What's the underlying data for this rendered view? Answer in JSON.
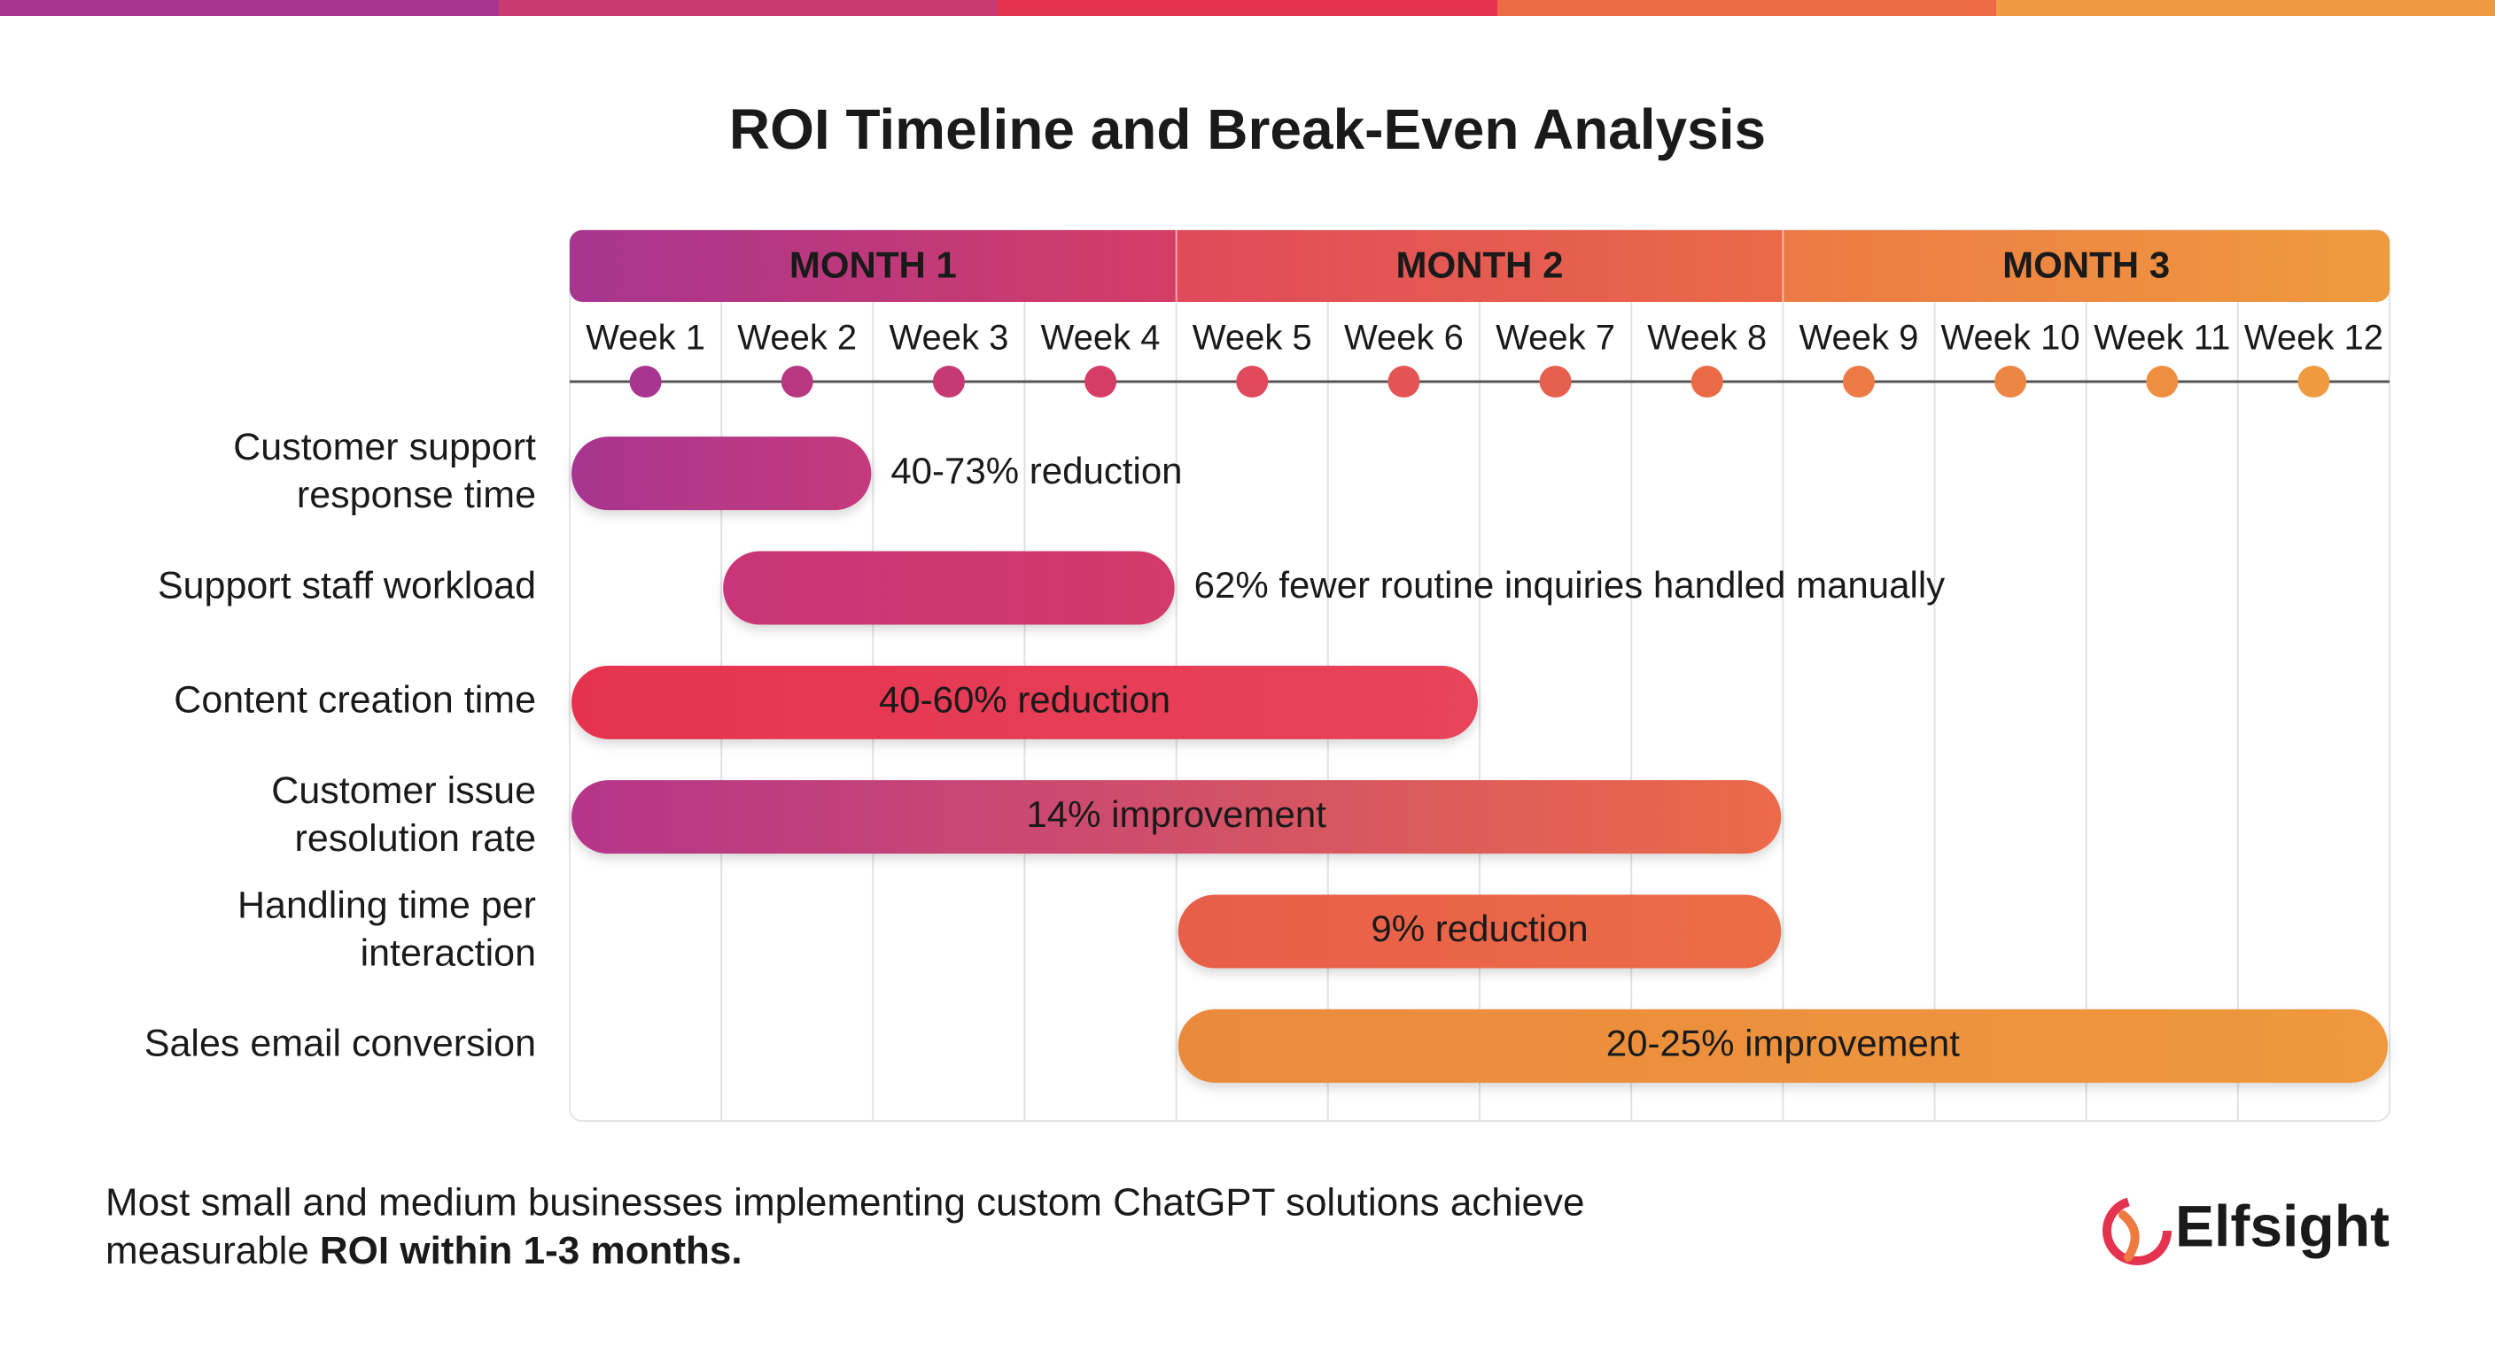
{
  "chart_data": {
    "type": "gantt",
    "title": "ROI Timeline and Break-Even Analysis",
    "months": [
      {
        "label": "MONTH 1",
        "colors": [
          "#a8358f",
          "#d53d66"
        ]
      },
      {
        "label": "MONTH 2",
        "colors": [
          "#e04a5a",
          "#ea6a48"
        ]
      },
      {
        "label": "MONTH 3",
        "colors": [
          "#ec7a45",
          "#ef9a3e"
        ]
      }
    ],
    "weeks": [
      "Week 1",
      "Week 2",
      "Week 3",
      "Week 4",
      "Week 5",
      "Week 6",
      "Week 7",
      "Week 8",
      "Week 9",
      "Week 10",
      "Week 11",
      "Week 12"
    ],
    "tasks": [
      {
        "label": [
          "Customer support",
          "response time"
        ],
        "start": 1,
        "end": 2,
        "annotation": "40-73% reduction",
        "colors": [
          "#a8358f",
          "#c53a7c"
        ],
        "label_color": "#222222"
      },
      {
        "label": [
          "Support staff workload"
        ],
        "start": 2,
        "end": 4,
        "annotation": "62% fewer routine inquiries handled manually",
        "colors": [
          "#c93578",
          "#d23a6a"
        ],
        "label_color": "#222222"
      },
      {
        "label": [
          "Content creation time"
        ],
        "start": 1,
        "end": 6,
        "annotation": "40-60% reduction",
        "colors": [
          "#e5334f",
          "#e8445a"
        ],
        "label_color": "#ffffff"
      },
      {
        "label": [
          "Customer issue",
          "resolution rate"
        ],
        "start": 1,
        "end": 8,
        "annotation": "14% improvement",
        "colors": [
          "#b5358a",
          "#ec6a48"
        ],
        "label_color": "#ffffff"
      },
      {
        "label": [
          "Handling time per",
          "interaction"
        ],
        "start": 5,
        "end": 8,
        "annotation": "9% reduction",
        "colors": [
          "#e85e4a",
          "#ec6c45"
        ],
        "label_color": "#ffffff"
      },
      {
        "label": [
          "Sales email conversion"
        ],
        "start": 5,
        "end": 12,
        "annotation": "20-25% improvement",
        "colors": [
          "#ea8a3c",
          "#ef983e"
        ],
        "label_color": "#2a2a2a"
      }
    ],
    "footnote": {
      "lines": [
        "Most small and medium businesses implementing custom ChatGPT solutions achieve",
        "measurable"
      ],
      "emphasis": "ROI within 1-3 months."
    },
    "brand": "Elfsight"
  }
}
